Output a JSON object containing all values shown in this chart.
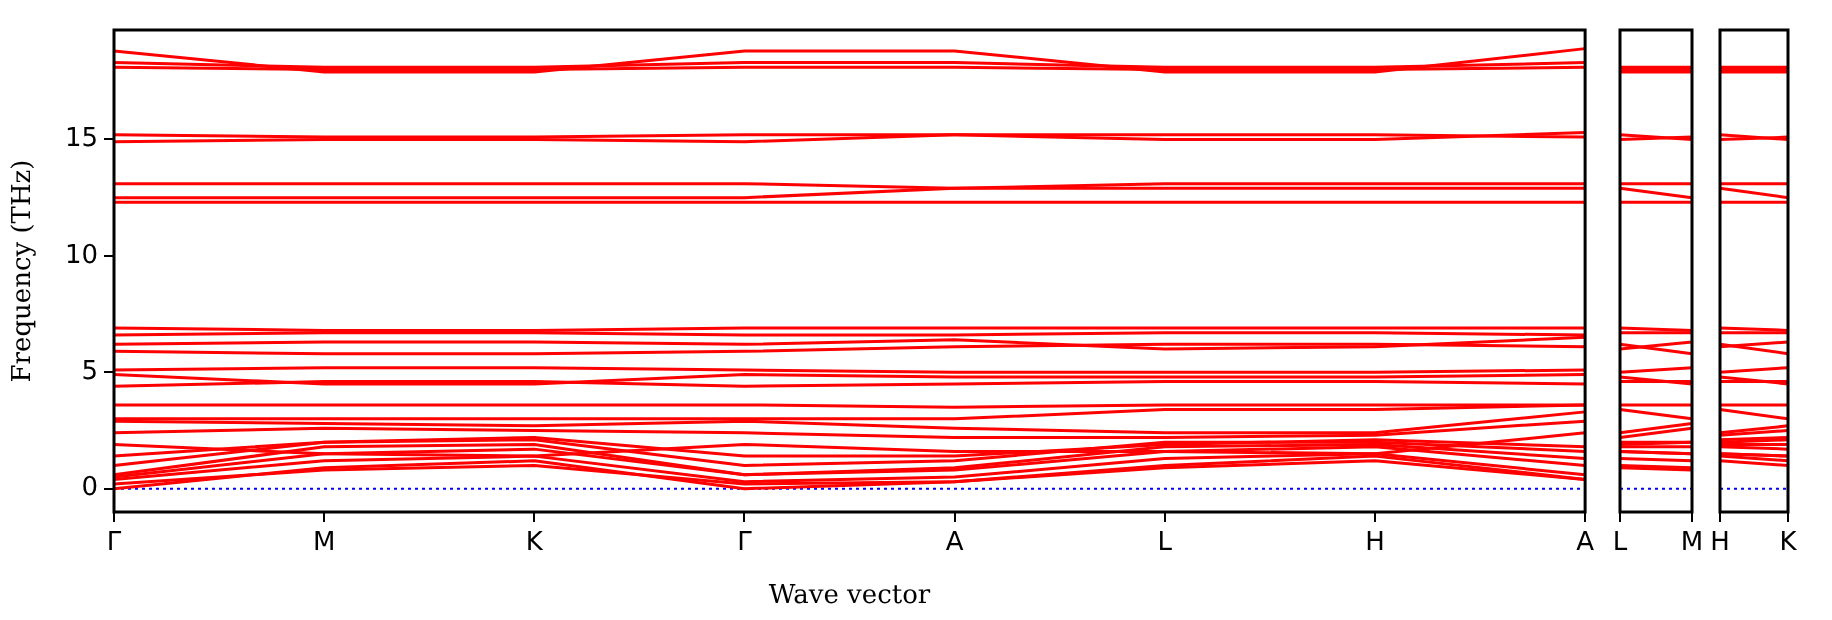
{
  "chart_data": [
    {
      "type": "line",
      "xlabel": "Wave vector",
      "ylabel": "Frequency (THz)",
      "color": "#ff0000",
      "marker": "none",
      "line_style": "solid",
      "categories": [
        "Γ",
        "M",
        "K",
        "Γ",
        "A",
        "L",
        "H",
        "A"
      ],
      "ylim": [
        -1,
        19.7
      ],
      "yticks": [
        0,
        5,
        10,
        15
      ],
      "ref_lines": [
        {
          "axis": "y",
          "value": 0,
          "color": "#0000ff",
          "line_style": "dotted"
        }
      ],
      "series": [
        {
          "values": [
            0,
            0.9,
            1.2,
            0,
            0.3,
            1.0,
            1.4,
            0.4
          ]
        },
        {
          "values": [
            0.2,
            0.8,
            1.0,
            0.2,
            0.3,
            0.9,
            1.2,
            0.4
          ]
        },
        {
          "values": [
            0.4,
            1.2,
            1.4,
            0.3,
            0.5,
            1.3,
            1.5,
            0.6
          ]
        },
        {
          "values": [
            0.5,
            1.5,
            1.7,
            0.6,
            0.8,
            1.6,
            1.8,
            1.0
          ]
        },
        {
          "values": [
            0.6,
            1.8,
            1.9,
            0.6,
            0.9,
            1.8,
            1.9,
            1.3
          ]
        },
        {
          "values": [
            1.0,
            2.0,
            2.1,
            1.0,
            1.2,
            2.0,
            2.0,
            1.6
          ]
        },
        {
          "values": [
            1.4,
            2.0,
            2.2,
            1.4,
            1.4,
            1.9,
            2.1,
            1.8
          ]
        },
        {
          "values": [
            1.9,
            1.5,
            1.4,
            1.9,
            1.6,
            1.6,
            1.5,
            2.4
          ]
        },
        {
          "values": [
            2.4,
            2.6,
            2.5,
            2.4,
            2.2,
            2.2,
            2.3,
            2.9
          ]
        },
        {
          "values": [
            2.9,
            2.8,
            2.7,
            2.9,
            2.6,
            2.4,
            2.4,
            3.3
          ]
        },
        {
          "values": [
            3.0,
            3.0,
            3.0,
            3.0,
            3.0,
            3.4,
            3.4,
            3.6
          ]
        },
        {
          "values": [
            3.6,
            3.6,
            3.6,
            3.6,
            3.5,
            3.6,
            3.6,
            3.6
          ]
        },
        {
          "values": [
            4.4,
            4.6,
            4.6,
            4.4,
            4.5,
            4.6,
            4.6,
            4.5
          ]
        },
        {
          "values": [
            4.9,
            4.5,
            4.5,
            4.9,
            4.8,
            4.8,
            4.8,
            4.9
          ]
        },
        {
          "values": [
            5.1,
            5.2,
            5.2,
            5.1,
            5.0,
            5.0,
            5.0,
            5.1
          ]
        },
        {
          "values": [
            5.9,
            5.8,
            5.8,
            5.9,
            6.1,
            6.2,
            6.2,
            6.1
          ]
        },
        {
          "values": [
            6.2,
            6.3,
            6.3,
            6.2,
            6.4,
            6.0,
            6.1,
            6.5
          ]
        },
        {
          "values": [
            6.6,
            6.7,
            6.7,
            6.6,
            6.6,
            6.7,
            6.7,
            6.6
          ]
        },
        {
          "values": [
            6.9,
            6.8,
            6.8,
            6.9,
            6.9,
            6.9,
            6.9,
            6.9
          ]
        },
        {
          "values": [
            12.3,
            12.3,
            12.3,
            12.3,
            12.3,
            12.3,
            12.3,
            12.3
          ]
        },
        {
          "values": [
            12.5,
            12.5,
            12.5,
            12.5,
            12.9,
            12.9,
            12.9,
            12.9
          ]
        },
        {
          "values": [
            13.1,
            13.1,
            13.1,
            13.1,
            12.9,
            13.1,
            13.1,
            13.1
          ]
        },
        {
          "values": [
            14.9,
            15.0,
            15.0,
            14.9,
            15.2,
            15.2,
            15.2,
            15.1
          ]
        },
        {
          "values": [
            15.2,
            15.1,
            15.1,
            15.2,
            15.2,
            15.0,
            15.0,
            15.3
          ]
        },
        {
          "values": [
            18.1,
            18.0,
            18.0,
            18.1,
            18.1,
            18.0,
            18.0,
            18.1
          ]
        },
        {
          "values": [
            18.3,
            18.1,
            18.1,
            18.3,
            18.3,
            18.1,
            18.1,
            18.3
          ]
        },
        {
          "values": [
            18.8,
            17.9,
            17.9,
            18.8,
            18.8,
            17.9,
            17.9,
            18.9
          ]
        }
      ]
    },
    {
      "type": "line",
      "color": "#ff0000",
      "marker": "none",
      "line_style": "solid",
      "tick_labels": "x",
      "categories": [
        "L",
        "M"
      ],
      "ylim": [
        -1,
        19.7
      ],
      "yticks": [
        0,
        5,
        10,
        15
      ],
      "ref_lines": [
        {
          "axis": "y",
          "value": 0,
          "color": "#0000ff",
          "line_style": "dotted"
        }
      ],
      "series": [
        {
          "values": [
            1.0,
            0.9
          ]
        },
        {
          "values": [
            0.9,
            0.8
          ]
        },
        {
          "values": [
            1.3,
            1.2
          ]
        },
        {
          "values": [
            1.6,
            1.5
          ]
        },
        {
          "values": [
            1.8,
            1.8
          ]
        },
        {
          "values": [
            2.0,
            2.0
          ]
        },
        {
          "values": [
            1.9,
            2.0
          ]
        },
        {
          "values": [
            1.6,
            1.5
          ]
        },
        {
          "values": [
            2.2,
            2.6
          ]
        },
        {
          "values": [
            2.4,
            2.8
          ]
        },
        {
          "values": [
            3.4,
            3.0
          ]
        },
        {
          "values": [
            3.6,
            3.6
          ]
        },
        {
          "values": [
            4.6,
            4.6
          ]
        },
        {
          "values": [
            4.8,
            4.5
          ]
        },
        {
          "values": [
            5.0,
            5.2
          ]
        },
        {
          "values": [
            6.2,
            5.8
          ]
        },
        {
          "values": [
            6.0,
            6.3
          ]
        },
        {
          "values": [
            6.7,
            6.7
          ]
        },
        {
          "values": [
            6.9,
            6.8
          ]
        },
        {
          "values": [
            12.3,
            12.3
          ]
        },
        {
          "values": [
            12.9,
            12.5
          ]
        },
        {
          "values": [
            13.1,
            13.1
          ]
        },
        {
          "values": [
            15.2,
            15.0
          ]
        },
        {
          "values": [
            15.0,
            15.1
          ]
        },
        {
          "values": [
            18.0,
            18.0
          ]
        },
        {
          "values": [
            18.1,
            18.1
          ]
        },
        {
          "values": [
            17.9,
            17.9
          ]
        }
      ]
    },
    {
      "type": "line",
      "color": "#ff0000",
      "marker": "none",
      "line_style": "solid",
      "tick_labels": "x",
      "categories": [
        "H",
        "K"
      ],
      "ylim": [
        -1,
        19.7
      ],
      "yticks": [
        0,
        5,
        10,
        15
      ],
      "ref_lines": [
        {
          "axis": "y",
          "value": 0,
          "color": "#0000ff",
          "line_style": "dotted"
        }
      ],
      "series": [
        {
          "values": [
            1.4,
            1.2
          ]
        },
        {
          "values": [
            1.2,
            1.0
          ]
        },
        {
          "values": [
            1.5,
            1.4
          ]
        },
        {
          "values": [
            1.8,
            1.7
          ]
        },
        {
          "values": [
            1.9,
            1.9
          ]
        },
        {
          "values": [
            2.0,
            2.1
          ]
        },
        {
          "values": [
            2.1,
            2.2
          ]
        },
        {
          "values": [
            1.5,
            1.4
          ]
        },
        {
          "values": [
            2.3,
            2.5
          ]
        },
        {
          "values": [
            2.4,
            2.7
          ]
        },
        {
          "values": [
            3.4,
            3.0
          ]
        },
        {
          "values": [
            3.6,
            3.6
          ]
        },
        {
          "values": [
            4.6,
            4.6
          ]
        },
        {
          "values": [
            4.8,
            4.5
          ]
        },
        {
          "values": [
            5.0,
            5.2
          ]
        },
        {
          "values": [
            6.2,
            5.8
          ]
        },
        {
          "values": [
            6.1,
            6.3
          ]
        },
        {
          "values": [
            6.7,
            6.7
          ]
        },
        {
          "values": [
            6.9,
            6.8
          ]
        },
        {
          "values": [
            12.3,
            12.3
          ]
        },
        {
          "values": [
            12.9,
            12.5
          ]
        },
        {
          "values": [
            13.1,
            13.1
          ]
        },
        {
          "values": [
            15.2,
            15.0
          ]
        },
        {
          "values": [
            15.0,
            15.1
          ]
        },
        {
          "values": [
            18.0,
            18.0
          ]
        },
        {
          "values": [
            18.1,
            18.1
          ]
        },
        {
          "values": [
            17.9,
            17.9
          ]
        }
      ]
    }
  ]
}
